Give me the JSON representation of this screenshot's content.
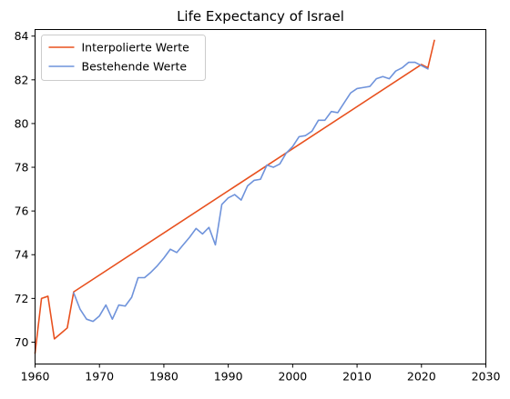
{
  "chart_data": {
    "type": "line",
    "title": "Life Expectancy of Israel",
    "xlabel": "",
    "ylabel": "",
    "xlim": [
      1960,
      2030
    ],
    "ylim": [
      69.0,
      84.3
    ],
    "x_ticks": [
      1960,
      1970,
      1980,
      1990,
      2000,
      2010,
      2020,
      2030
    ],
    "y_ticks": [
      70,
      72,
      74,
      76,
      78,
      80,
      82,
      84
    ],
    "grid": false,
    "legend_position": "top-left",
    "series": [
      {
        "name": "Interpolierte Werte",
        "color": "#e8511f",
        "x": [
          1960,
          1961,
          1962,
          1963,
          1964,
          1965,
          1966,
          2020,
          2021,
          2022
        ],
        "y": [
          69.5,
          72.0,
          72.1,
          70.15,
          70.4,
          70.65,
          72.3,
          82.7,
          82.55,
          83.8
        ]
      },
      {
        "name": "Bestehende Werte",
        "color": "#6f93db",
        "x": [
          1966,
          1967,
          1968,
          1969,
          1970,
          1971,
          1972,
          1973,
          1974,
          1975,
          1976,
          1977,
          1978,
          1979,
          1980,
          1981,
          1982,
          1983,
          1984,
          1985,
          1986,
          1987,
          1988,
          1989,
          1990,
          1991,
          1992,
          1993,
          1994,
          1995,
          1996,
          1997,
          1998,
          1999,
          2000,
          2001,
          2002,
          2003,
          2004,
          2005,
          2006,
          2007,
          2008,
          2009,
          2010,
          2011,
          2012,
          2013,
          2014,
          2015,
          2016,
          2017,
          2018,
          2019,
          2020,
          2021
        ],
        "y": [
          72.25,
          71.5,
          71.05,
          70.95,
          71.2,
          71.7,
          71.05,
          71.7,
          71.65,
          72.05,
          72.95,
          72.95,
          73.2,
          73.5,
          73.85,
          74.25,
          74.1,
          74.45,
          74.8,
          75.2,
          74.95,
          75.25,
          74.45,
          76.3,
          76.6,
          76.75,
          76.5,
          77.15,
          77.4,
          77.45,
          78.1,
          78.0,
          78.15,
          78.65,
          78.95,
          79.4,
          79.45,
          79.65,
          80.15,
          80.15,
          80.55,
          80.5,
          80.95,
          81.4,
          81.6,
          81.65,
          81.7,
          82.05,
          82.15,
          82.05,
          82.4,
          82.55,
          82.8,
          82.8,
          82.65,
          82.5
        ]
      }
    ]
  }
}
